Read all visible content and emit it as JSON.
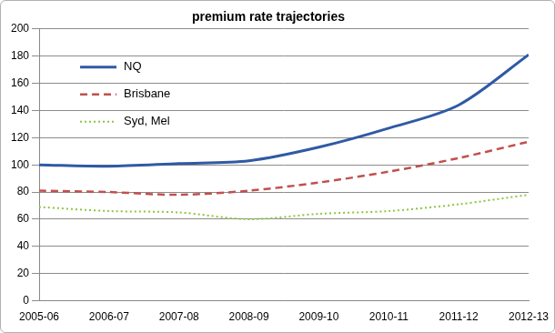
{
  "chart_data": {
    "type": "line",
    "title": "premium rate trajectories",
    "categories": [
      "2005-06",
      "2006-07",
      "2007-08",
      "2008-09",
      "2009-10",
      "2010-11",
      "2011-12",
      "2012-13"
    ],
    "series": [
      {
        "name": "NQ",
        "color": "#2f5aa5",
        "line_style": "solid",
        "values": [
          100,
          99,
          101,
          103,
          113,
          127,
          144,
          181
        ]
      },
      {
        "name": "Brisbane",
        "color": "#c0504d",
        "line_style": "dashed",
        "values": [
          81,
          80,
          78,
          81,
          87,
          95,
          105,
          117
        ]
      },
      {
        "name": "Syd, Mel",
        "color": "#8cc63f",
        "line_style": "dotted",
        "values": [
          69,
          66,
          65,
          60,
          64,
          66,
          71,
          78
        ]
      }
    ],
    "ylim": [
      0,
      200
    ],
    "yticks": [
      0,
      20,
      40,
      60,
      80,
      100,
      120,
      140,
      160,
      180,
      200
    ],
    "grid": true,
    "legend": "upper left",
    "marker": "none"
  }
}
